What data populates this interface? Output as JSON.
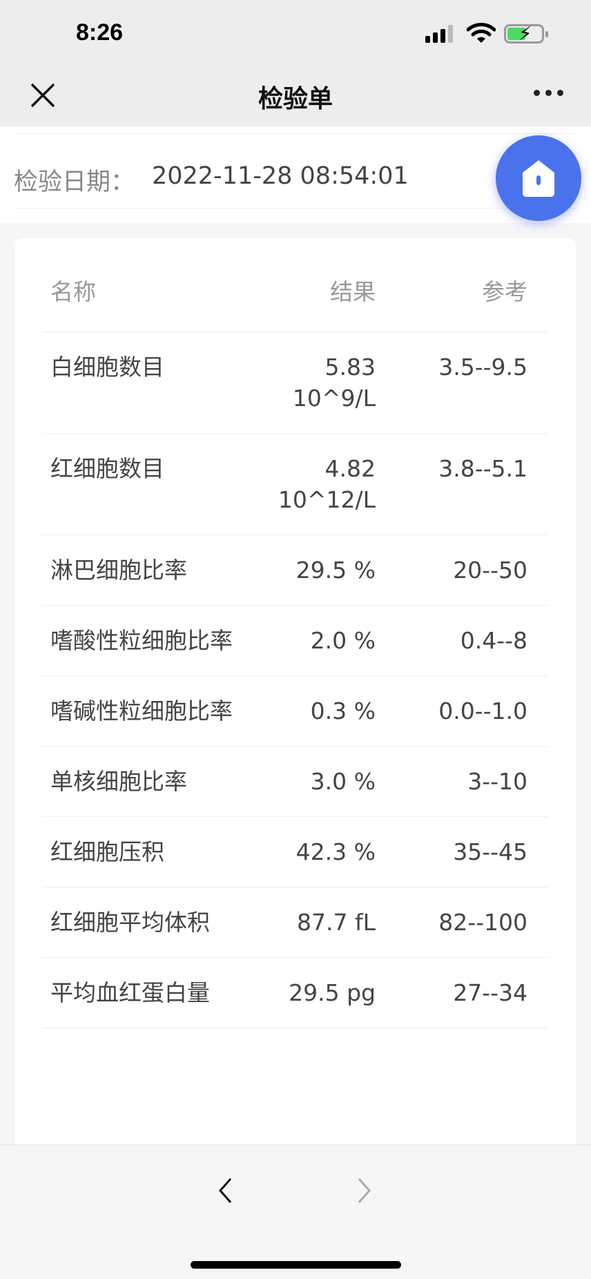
{
  "status_bar": {
    "time": "8:26",
    "icons": [
      "signal-icon",
      "wifi-icon",
      "battery-charging-icon"
    ],
    "battery_color": "#4cd964"
  },
  "nav": {
    "title": "检验单",
    "close_icon": "close-icon",
    "more_icon": "more-icon"
  },
  "date": {
    "label": "检验日期：",
    "value": "2022-11-28 08:54:01"
  },
  "fab": {
    "icon": "home-icon",
    "color": "#4a72ec"
  },
  "table": {
    "headers": [
      "名称",
      "结果",
      "参考"
    ],
    "rows": [
      {
        "name": "白细胞数目",
        "result": "5.83\n10^9/L",
        "reference": "3.5--9.5"
      },
      {
        "name": "红细胞数目",
        "result": "4.82\n10^12/L",
        "reference": "3.8--5.1"
      },
      {
        "name": "淋巴细胞比率",
        "result": "29.5 %",
        "reference": "20--50"
      },
      {
        "name": "嗜酸性粒细胞比率",
        "result": "2.0 %",
        "reference": "0.4--8"
      },
      {
        "name": "嗜碱性粒细胞比率",
        "result": "0.3 %",
        "reference": "0.0--1.0"
      },
      {
        "name": "单核细胞比率",
        "result": "3.0 %",
        "reference": "3--10"
      },
      {
        "name": "红细胞压积",
        "result": "42.3 %",
        "reference": "35--45"
      },
      {
        "name": "红细胞平均体积",
        "result": "87.7 fL",
        "reference": "82--100"
      },
      {
        "name": "平均血红蛋白量",
        "result": "29.5 pg",
        "reference": "27--34"
      }
    ]
  },
  "bottom_bar": {
    "back_icon": "chevron-left-icon",
    "forward_icon": "chevron-right-icon",
    "forward_enabled": false
  }
}
